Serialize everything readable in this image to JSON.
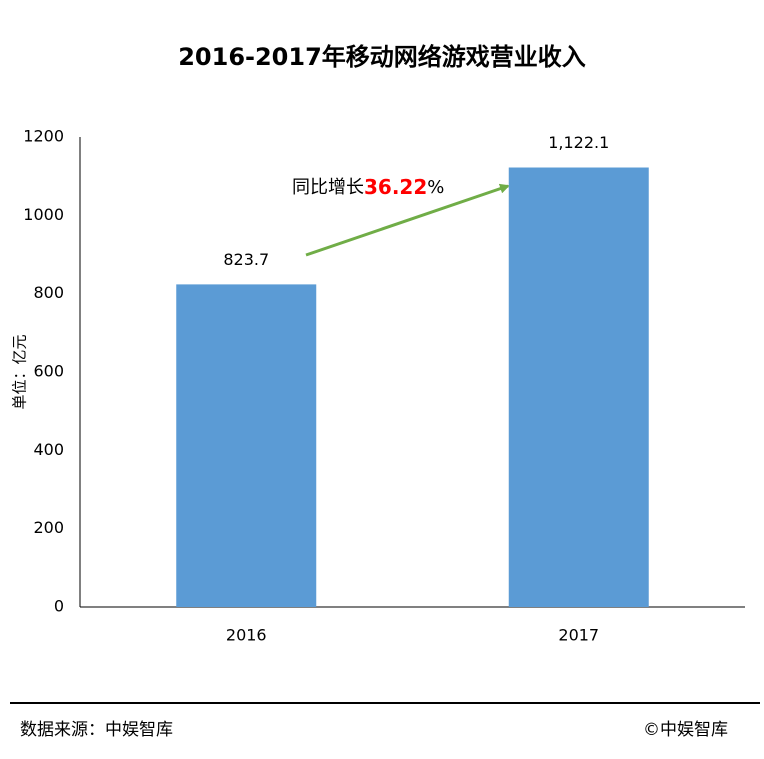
{
  "chart_data": {
    "type": "bar",
    "title": "2016-2017年移动网络游戏营业收入",
    "y_axis_label": "单位：亿元",
    "categories": [
      "2016",
      "2017"
    ],
    "values": [
      823.7,
      1122.1
    ],
    "value_labels": [
      "823.7",
      "1,122.1"
    ],
    "color": "#5b9bd5",
    "ylim": [
      0,
      1200
    ],
    "yticks": [
      0,
      200,
      400,
      600,
      800,
      1000,
      1200
    ],
    "grid": false,
    "annotation": {
      "prefix": "同比增长",
      "value": 36.22,
      "suffix": "%"
    },
    "source": "数据来源：中娱智库",
    "copyright": "©中娱智库"
  }
}
